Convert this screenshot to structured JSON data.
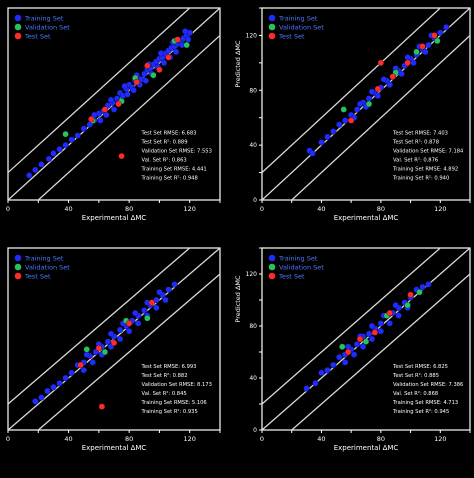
{
  "colors": {
    "background": "#000000",
    "axis": "#ffffff",
    "guide": "#d9d9d9",
    "training": "#1f2bff",
    "validation": "#22c55e",
    "test": "#ff2a2a",
    "legend_text": "#4a78ff",
    "metrics_text": "#ffffff"
  },
  "chart_data": [
    {
      "type": "scatter",
      "title": "",
      "xlabel": "Experimental ΔMC",
      "ylabel": "",
      "xlim": [
        0,
        140
      ],
      "ylim": [
        0,
        140
      ],
      "xticks": [
        "0",
        "20",
        "40",
        "60",
        "80",
        "100",
        "120",
        "140"
      ],
      "yticks": [],
      "legend": [
        "Training Set",
        "Validation Set",
        "Test Set"
      ],
      "legend_position": "top-left",
      "grid": false,
      "metrics": [
        "Test Set RMSE: 6.683",
        "Test Set R²: 0.889",
        "Validation Set RMSE: 7.553",
        "Val. Set R²: 0.863",
        "Training Set RMSE: 4.441",
        "Training Set R²: 0.948"
      ],
      "series": [
        {
          "name": "Training Set",
          "points": [
            [
              14,
              18
            ],
            [
              18,
              22
            ],
            [
              22,
              26
            ],
            [
              27,
              30
            ],
            [
              30,
              34
            ],
            [
              34,
              37
            ],
            [
              38,
              40
            ],
            [
              42,
              44
            ],
            [
              46,
              47
            ],
            [
              50,
              52
            ],
            [
              54,
              55
            ],
            [
              57,
              58
            ],
            [
              60,
              63
            ],
            [
              63,
              65
            ],
            [
              66,
              69
            ],
            [
              69,
              71
            ],
            [
              72,
              74
            ],
            [
              74,
              78
            ],
            [
              76,
              76
            ],
            [
              78,
              81
            ],
            [
              80,
              84
            ],
            [
              82,
              82
            ],
            [
              84,
              87
            ],
            [
              86,
              89
            ],
            [
              88,
              88
            ],
            [
              90,
              92
            ],
            [
              92,
              95
            ],
            [
              94,
              96
            ],
            [
              96,
              99
            ],
            [
              98,
              101
            ],
            [
              100,
              103
            ],
            [
              102,
              104
            ],
            [
              104,
              107
            ],
            [
              106,
              109
            ],
            [
              108,
              111
            ],
            [
              110,
              112
            ],
            [
              112,
              114
            ],
            [
              114,
              116
            ],
            [
              116,
              118
            ],
            [
              118,
              120
            ],
            [
              120,
              122
            ],
            [
              61,
              58
            ],
            [
              65,
              62
            ],
            [
              70,
              66
            ],
            [
              73,
              71
            ],
            [
              79,
              77
            ],
            [
              83,
              80
            ],
            [
              87,
              84
            ],
            [
              91,
              87
            ],
            [
              95,
              92
            ],
            [
              99,
              97
            ],
            [
              103,
              100
            ],
            [
              107,
              104
            ],
            [
              111,
              108
            ],
            [
              115,
              113
            ],
            [
              119,
              117
            ],
            [
              57,
              62
            ],
            [
              68,
              73
            ],
            [
              77,
              83
            ],
            [
              85,
              91
            ],
            [
              93,
              99
            ],
            [
              101,
              107
            ],
            [
              109,
              115
            ],
            [
              117,
              123
            ]
          ]
        },
        {
          "name": "Validation Set",
          "points": [
            [
              38,
              48
            ],
            [
              56,
              58
            ],
            [
              75,
              72
            ],
            [
              84,
              89
            ],
            [
              96,
              91
            ],
            [
              110,
              116
            ],
            [
              118,
              113
            ]
          ]
        },
        {
          "name": "Test Set",
          "points": [
            [
              55,
              59
            ],
            [
              64,
              66
            ],
            [
              73,
              70
            ],
            [
              85,
              86
            ],
            [
              92,
              98
            ],
            [
              100,
              95
            ],
            [
              106,
              104
            ],
            [
              112,
              117
            ],
            [
              75,
              32
            ]
          ]
        }
      ]
    },
    {
      "type": "scatter",
      "title": "",
      "xlabel": "Experimental ΔMC",
      "ylabel": "Predicted ΔMC",
      "xlim": [
        0,
        140
      ],
      "ylim": [
        0,
        140
      ],
      "xticks": [
        "0",
        "20",
        "40",
        "60",
        "80",
        "100",
        "120",
        "140"
      ],
      "yticks": [
        "0",
        "20",
        "40",
        "60",
        "80",
        "100",
        "120",
        "140"
      ],
      "legend": [
        "Training Set",
        "Validation Set",
        "Test Set"
      ],
      "legend_position": "top-left",
      "grid": false,
      "metrics": [
        "Test Set RMSE: 7.403",
        "Test Set R²: 0.878",
        "Validation Set RMSE: 7.184",
        "Val. Set R²: 0.876",
        "Training Set RMSE: 4.892",
        "Training Set R²: 0.940"
      ],
      "series": [
        {
          "name": "Training Set",
          "points": [
            [
              32,
              36
            ],
            [
              34,
              34
            ],
            [
              40,
              42
            ],
            [
              44,
              46
            ],
            [
              48,
              50
            ],
            [
              52,
              55
            ],
            [
              56,
              58
            ],
            [
              60,
              62
            ],
            [
              64,
              66
            ],
            [
              68,
              71
            ],
            [
              72,
              74
            ],
            [
              76,
              78
            ],
            [
              80,
              82
            ],
            [
              84,
              87
            ],
            [
              88,
              90
            ],
            [
              92,
              94
            ],
            [
              96,
              98
            ],
            [
              100,
              103
            ],
            [
              104,
              106
            ],
            [
              108,
              110
            ],
            [
              112,
              113
            ],
            [
              116,
              118
            ],
            [
              120,
              122
            ],
            [
              124,
              126
            ],
            [
              62,
              60
            ],
            [
              70,
              68
            ],
            [
              78,
              76
            ],
            [
              86,
              84
            ],
            [
              94,
              92
            ],
            [
              102,
              100
            ],
            [
              110,
              108
            ],
            [
              118,
              116
            ],
            [
              66,
              70
            ],
            [
              74,
              79
            ],
            [
              82,
              88
            ],
            [
              90,
              96
            ],
            [
              98,
              104
            ],
            [
              106,
              112
            ],
            [
              114,
              120
            ]
          ]
        },
        {
          "name": "Validation Set",
          "points": [
            [
              55,
              66
            ],
            [
              72,
              70
            ],
            [
              90,
              93
            ],
            [
              104,
              108
            ],
            [
              118,
              116
            ]
          ]
        },
        {
          "name": "Test Set",
          "points": [
            [
              60,
              58
            ],
            [
              78,
              81
            ],
            [
              88,
              90
            ],
            [
              98,
              100
            ],
            [
              108,
              112
            ],
            [
              116,
              120
            ],
            [
              80,
              100
            ]
          ]
        }
      ]
    },
    {
      "type": "scatter",
      "title": "",
      "xlabel": "Experimental ΔMC",
      "ylabel": "",
      "xlim": [
        0,
        140
      ],
      "ylim": [
        0,
        140
      ],
      "xticks": [
        "0",
        "20",
        "40",
        "60",
        "80",
        "100",
        "120",
        "140"
      ],
      "yticks": [],
      "legend": [
        "Training Set",
        "Validation Set",
        "Test Set"
      ],
      "legend_position": "top-left",
      "grid": false,
      "metrics": [
        "Test Set RMSE: 6.993",
        "Test Set R²: 0.882",
        "Validation Set RMSE: 8.173",
        "Val. Set R²: 0.845",
        "Training Set RMSE: 5.106",
        "Training Set R²: 0.935"
      ],
      "series": [
        {
          "name": "Training Set",
          "points": [
            [
              18,
              22
            ],
            [
              22,
              25
            ],
            [
              26,
              30
            ],
            [
              30,
              33
            ],
            [
              34,
              36
            ],
            [
              38,
              40
            ],
            [
              42,
              44
            ],
            [
              46,
              50
            ],
            [
              50,
              52
            ],
            [
              54,
              57
            ],
            [
              58,
              60
            ],
            [
              62,
              64
            ],
            [
              66,
              68
            ],
            [
              70,
              72
            ],
            [
              74,
              77
            ],
            [
              78,
              80
            ],
            [
              82,
              84
            ],
            [
              86,
              88
            ],
            [
              90,
              92
            ],
            [
              94,
              96
            ],
            [
              98,
              100
            ],
            [
              102,
              104
            ],
            [
              106,
              108
            ],
            [
              110,
              112
            ],
            [
              50,
              46
            ],
            [
              56,
              52
            ],
            [
              62,
              58
            ],
            [
              68,
              64
            ],
            [
              74,
              70
            ],
            [
              80,
              76
            ],
            [
              86,
              82
            ],
            [
              92,
              88
            ],
            [
              98,
              94
            ],
            [
              104,
              100
            ],
            [
              52,
              58
            ],
            [
              60,
              66
            ],
            [
              68,
              74
            ],
            [
              76,
              82
            ],
            [
              84,
              90
            ],
            [
              92,
              98
            ],
            [
              100,
              106
            ]
          ]
        },
        {
          "name": "Validation Set",
          "points": [
            [
              52,
              62
            ],
            [
              64,
              60
            ],
            [
              78,
              84
            ],
            [
              92,
              86
            ]
          ]
        },
        {
          "name": "Test Set",
          "points": [
            [
              48,
              50
            ],
            [
              60,
              63
            ],
            [
              70,
              67
            ],
            [
              80,
              82
            ],
            [
              95,
              98
            ],
            [
              62,
              18
            ]
          ]
        }
      ]
    },
    {
      "type": "scatter",
      "title": "",
      "xlabel": "Experimental ΔMC",
      "ylabel": "Predicted ΔMC",
      "xlim": [
        0,
        140
      ],
      "ylim": [
        0,
        140
      ],
      "xticks": [
        "0",
        "20",
        "40",
        "60",
        "80",
        "100",
        "120",
        "140"
      ],
      "yticks": [
        "0",
        "20",
        "40",
        "60",
        "80",
        "100",
        "120",
        "140"
      ],
      "legend": [
        "Training Set",
        "Validation Set",
        "Test Set"
      ],
      "legend_position": "top-left",
      "grid": false,
      "metrics": [
        "Test Set RMSE: 6.825",
        "Test Set R²: 0.885",
        "Validation Set RMSE: 7.386",
        "Val. Set R²: 0.868",
        "Training Set RMSE: 4.713",
        "Training Set R²: 0.945"
      ],
      "series": [
        {
          "name": "Training Set",
          "points": [
            [
              30,
              32
            ],
            [
              36,
              36
            ],
            [
              40,
              44
            ],
            [
              44,
              46
            ],
            [
              48,
              50
            ],
            [
              52,
              56
            ],
            [
              56,
              58
            ],
            [
              60,
              62
            ],
            [
              64,
              66
            ],
            [
              68,
              72
            ],
            [
              72,
              74
            ],
            [
              76,
              78
            ],
            [
              80,
              82
            ],
            [
              84,
              88
            ],
            [
              88,
              90
            ],
            [
              92,
              94
            ],
            [
              96,
              98
            ],
            [
              100,
              102
            ],
            [
              104,
              108
            ],
            [
              108,
              110
            ],
            [
              112,
              112
            ],
            [
              56,
              52
            ],
            [
              62,
              58
            ],
            [
              68,
              64
            ],
            [
              74,
              70
            ],
            [
              80,
              76
            ],
            [
              86,
              82
            ],
            [
              92,
              88
            ],
            [
              98,
              94
            ],
            [
              58,
              64
            ],
            [
              66,
              72
            ],
            [
              74,
              80
            ],
            [
              82,
              88
            ],
            [
              90,
              96
            ]
          ]
        },
        {
          "name": "Validation Set",
          "points": [
            [
              54,
              64
            ],
            [
              70,
              68
            ],
            [
              84,
              88
            ],
            [
              98,
              96
            ],
            [
              106,
              106
            ]
          ]
        },
        {
          "name": "Test Set",
          "points": [
            [
              58,
              60
            ],
            [
              66,
              70
            ],
            [
              76,
              75
            ],
            [
              86,
              90
            ],
            [
              100,
              104
            ]
          ]
        }
      ]
    }
  ]
}
